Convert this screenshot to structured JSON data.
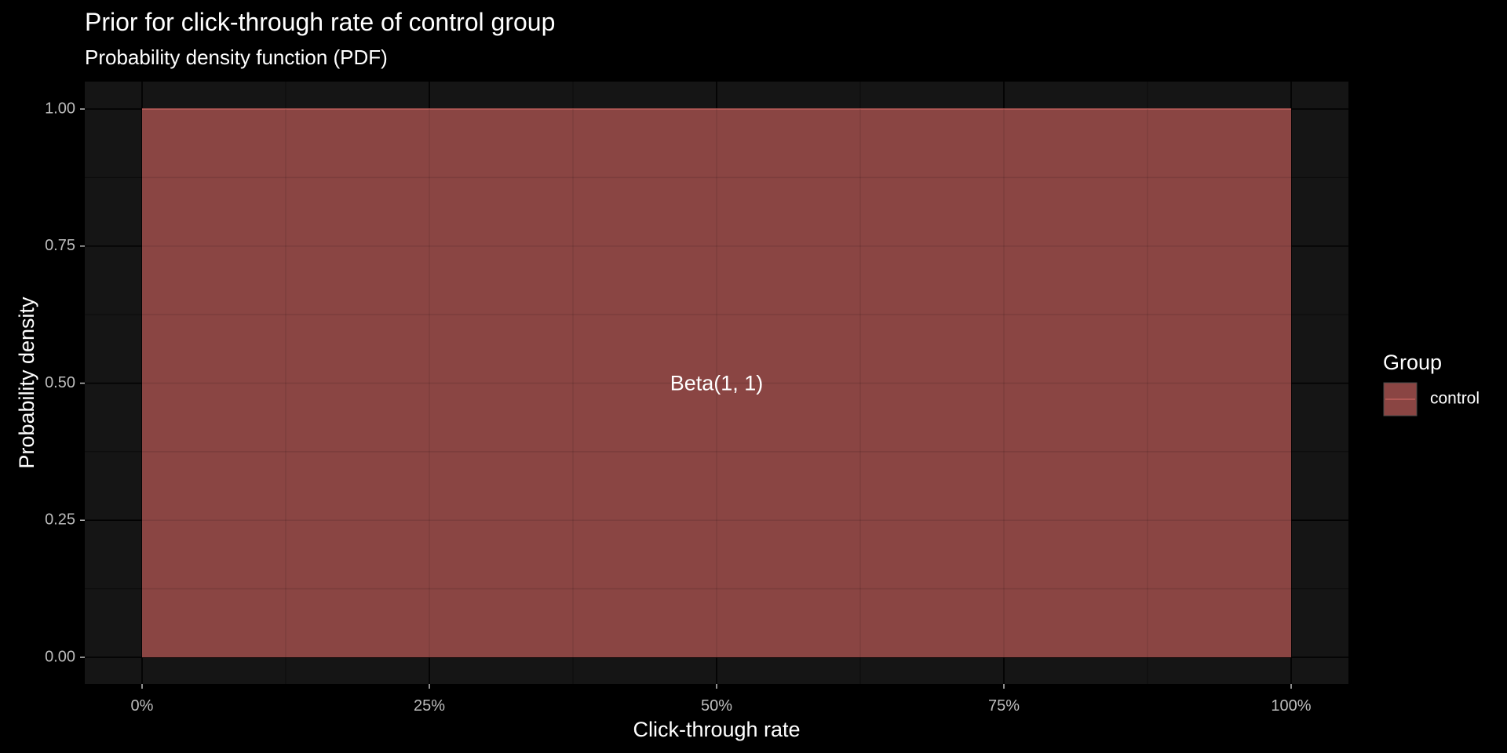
{
  "chart_data": {
    "type": "area",
    "title": "Prior for click-through rate of control group",
    "subtitle": "Probability density function (PDF)",
    "xlabel": "Click-through rate",
    "ylabel": "Probability density",
    "xlim": [
      0,
      1
    ],
    "ylim": [
      0,
      1
    ],
    "x_ticks": [
      0,
      0.25,
      0.5,
      0.75,
      1
    ],
    "x_tick_labels": [
      "0%",
      "25%",
      "50%",
      "75%",
      "100%"
    ],
    "y_ticks": [
      0,
      0.25,
      0.5,
      0.75,
      1
    ],
    "y_tick_labels": [
      "0.00",
      "0.25",
      "0.50",
      "0.75",
      "1.00"
    ],
    "grid": true,
    "series": [
      {
        "name": "control",
        "x": [
          0,
          1
        ],
        "y": [
          1,
          1
        ],
        "fill_color": "#8a4543",
        "line_color": "#c0605c"
      }
    ],
    "annotation": {
      "text": "Beta(1, 1)",
      "x": 0.5,
      "y": 0.5
    },
    "legend": {
      "title": "Group",
      "position": "right",
      "labels": [
        "control"
      ]
    },
    "colors": {
      "background": "#000000",
      "panel": "#151515",
      "grid_major": "#000000",
      "grid_minor": "#0b0b0b",
      "tick_text": "#bdbdbd",
      "text": "#ffffff"
    }
  }
}
